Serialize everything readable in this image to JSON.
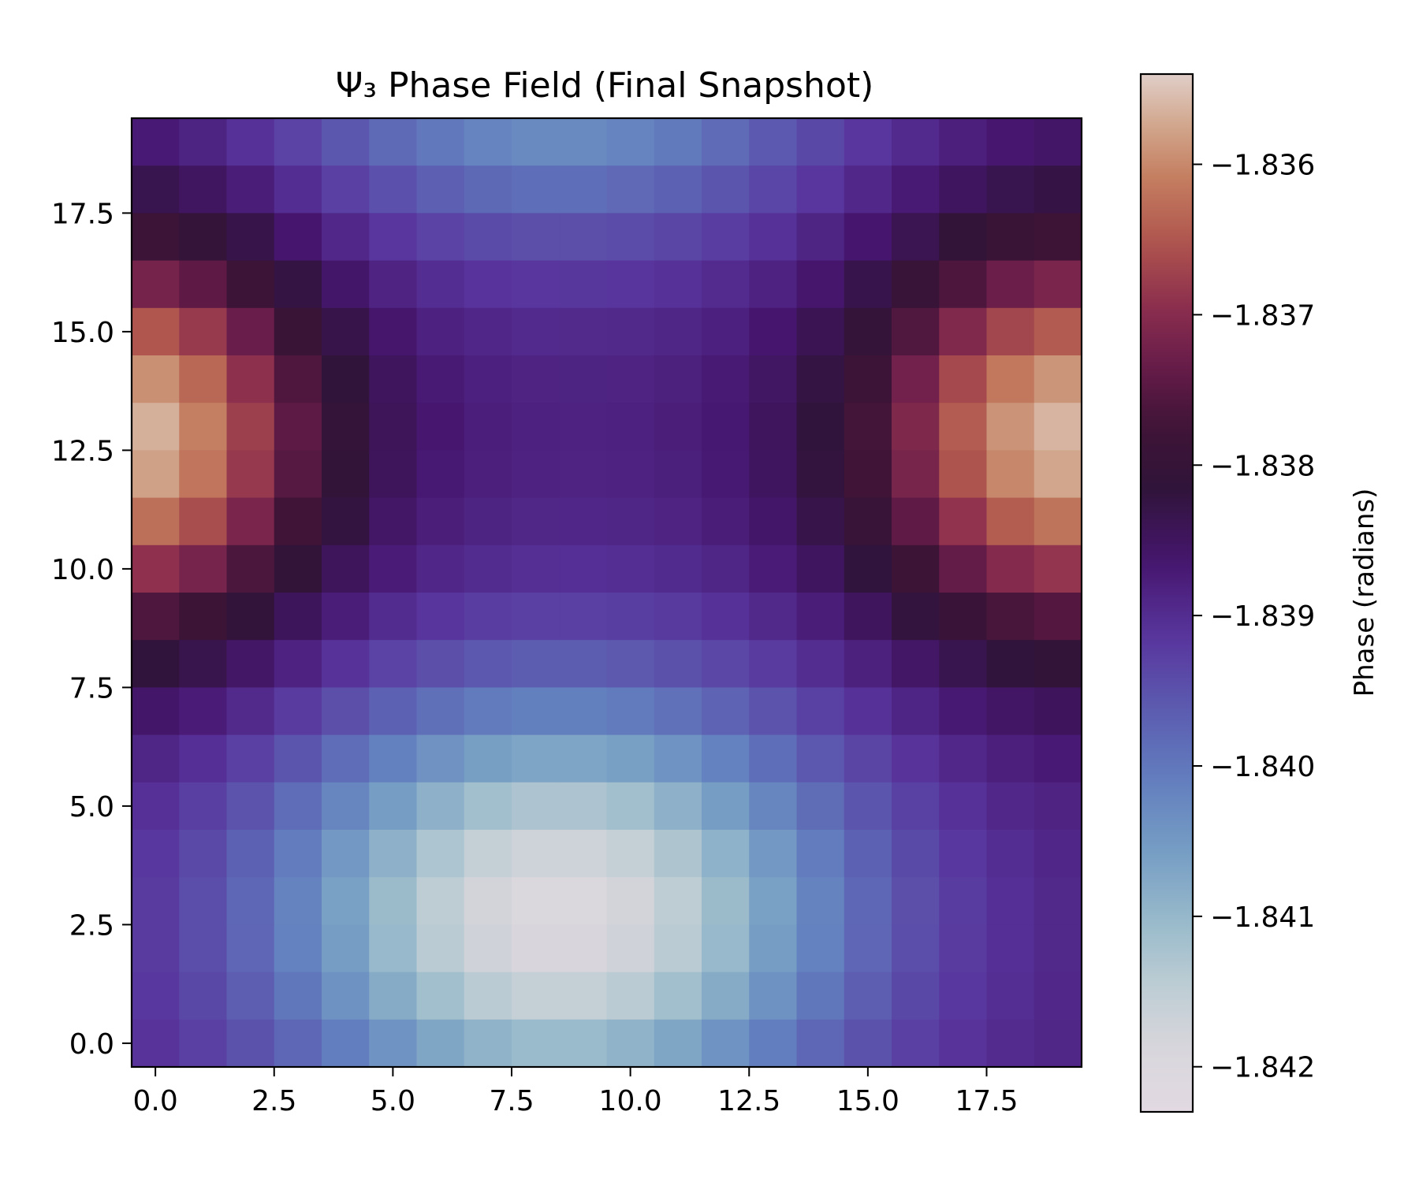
{
  "chart_data": {
    "type": "heatmap",
    "title": "Ψ₃ Phase Field (Final Snapshot)",
    "xlabel": "",
    "ylabel": "",
    "colorbar_label": "Phase (radians)",
    "colormap": "twilight_shifted",
    "grid": false,
    "x_ticks": [
      "0.0",
      "2.5",
      "5.0",
      "7.5",
      "10.0",
      "12.5",
      "15.0",
      "17.5"
    ],
    "y_ticks": [
      "0.0",
      "2.5",
      "5.0",
      "7.5",
      "10.0",
      "12.5",
      "15.0",
      "17.5"
    ],
    "colorbar_ticks": [
      "−1.836",
      "−1.837",
      "−1.838",
      "−1.839",
      "−1.840",
      "−1.841",
      "−1.842"
    ],
    "x_range": [
      -0.5,
      19.5
    ],
    "y_range": [
      19.5,
      -0.5
    ],
    "colorbar_range": [
      -1.8423,
      -1.8354
    ],
    "rows": 20,
    "cols": 20,
    "field": {
      "description_of_levels": "values in radians",
      "min": -1.842,
      "max": -1.8356
    }
  }
}
